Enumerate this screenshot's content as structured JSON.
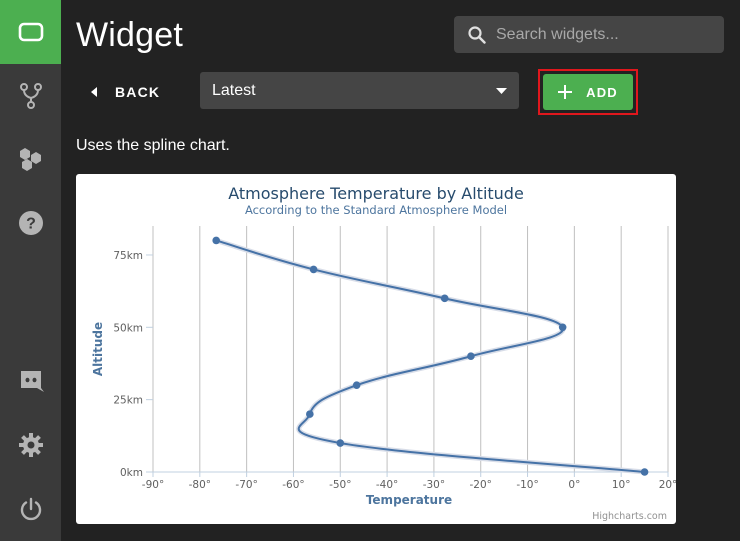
{
  "sidebar": {
    "items": [
      {
        "icon": "widget-icon",
        "active": true
      },
      {
        "icon": "fork-icon"
      },
      {
        "icon": "hexagons-icon"
      },
      {
        "icon": "help-icon"
      },
      {
        "icon": "discord-icon"
      },
      {
        "icon": "gear-icon"
      },
      {
        "icon": "power-icon"
      }
    ],
    "accent": "#4caf50"
  },
  "header": {
    "title": "Widget",
    "search_placeholder": "Search widgets..."
  },
  "toolbar": {
    "back_label": "BACK",
    "select_value": "Latest",
    "add_label": "ADD",
    "highlight_color": "#e0171d"
  },
  "description": "Uses the spline chart.",
  "chart_data": {
    "type": "line",
    "title": "Atmosphere Temperature by Altitude",
    "subtitle": "According to the Standard Atmosphere Model",
    "xlabel": "Temperature",
    "ylabel": "Altitude",
    "xlim": [
      -90,
      20
    ],
    "ylim": [
      0,
      80
    ],
    "x_ticks": [
      "-90°",
      "-80°",
      "-70°",
      "-60°",
      "-50°",
      "-40°",
      "-30°",
      "-20°",
      "-10°",
      "0°",
      "10°",
      "20°"
    ],
    "y_ticks": [
      "0km",
      "25km",
      "50km",
      "75km"
    ],
    "grid": "vertical",
    "credits": "Highcharts.com",
    "series": [
      {
        "color": "#4572a7",
        "points": [
          {
            "x": 15,
            "y": 0
          },
          {
            "x": -50,
            "y": 10
          },
          {
            "x": -56.5,
            "y": 20
          },
          {
            "x": -46.5,
            "y": 30
          },
          {
            "x": -22.1,
            "y": 40
          },
          {
            "x": -2.5,
            "y": 50
          },
          {
            "x": -27.7,
            "y": 60
          },
          {
            "x": -55.7,
            "y": 70
          },
          {
            "x": -76.5,
            "y": 80
          }
        ]
      }
    ]
  }
}
